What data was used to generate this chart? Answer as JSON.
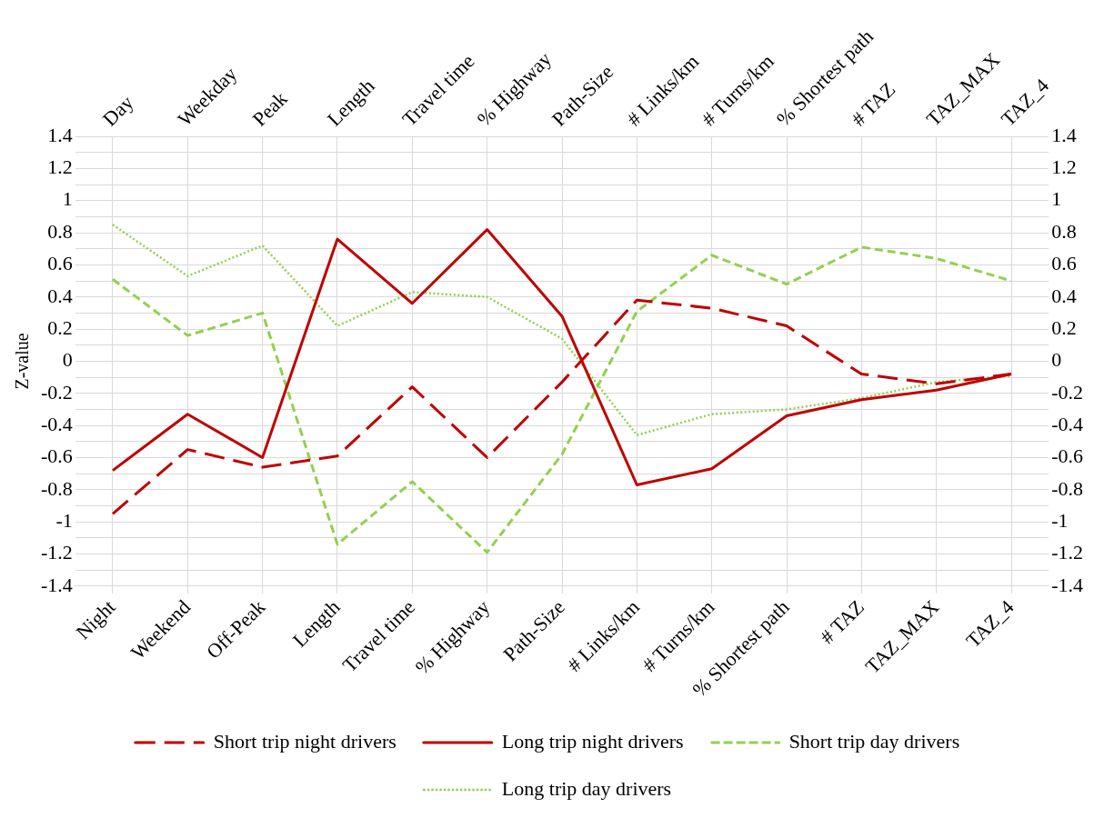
{
  "chart_data": {
    "type": "line",
    "ylabel": "Z-value",
    "categories": [
      "Night",
      "Weekend",
      "Off-Peak",
      "Length",
      "Travel time",
      "% Highway",
      "Path-Size",
      "# Links/km",
      "# Turns/km",
      "% Shortest path",
      "# TAZ",
      "TAZ_MAX",
      "TAZ_4"
    ],
    "annotations": [
      "Day",
      "Weekday",
      "Peak",
      "Length",
      "Travel time",
      "% Highway",
      "Path-Size",
      "# Links/km",
      "# Turns/km",
      "% Shortest path",
      "# TAZ",
      "TAZ_MAX",
      "TAZ_4"
    ],
    "ylim": [
      -1.4,
      1.4
    ],
    "yticks": [
      -1.4,
      {
        "value": -1.3,
        "label": null
      },
      -1.2,
      {
        "value": -1.1,
        "label": null
      },
      -1,
      {
        "value": -0.9,
        "label": null
      },
      -0.8,
      {
        "value": -0.7,
        "label": null
      },
      -0.6,
      {
        "value": -0.5,
        "label": null
      },
      -0.4,
      {
        "value": -0.3,
        "label": null
      },
      -0.2,
      {
        "value": -0.1,
        "label": null
      },
      0,
      {
        "value": 0.1,
        "label": null
      },
      0.2,
      {
        "value": 0.3,
        "label": null
      },
      0.4,
      {
        "value": 0.5,
        "label": null
      },
      0.6,
      {
        "value": 0.7,
        "label": null
      },
      0.8,
      {
        "value": 0.9,
        "label": null
      },
      1,
      {
        "value": 1.1,
        "label": null
      },
      1.2,
      {
        "value": 1.3,
        "label": null
      },
      1.4
    ],
    "y2lim": [
      -1.4,
      1.4
    ],
    "y2ticks": [
      -1.4,
      -1.2,
      -1,
      -0.8,
      -0.6,
      -0.4,
      -0.2,
      0,
      0.2,
      0.4,
      0.6,
      0.8,
      1,
      1.2,
      1.4
    ],
    "grid": true,
    "legend": "bottom",
    "marker": "none",
    "series": [
      {
        "name": "Short trip night drivers",
        "color": "#c00000",
        "line_style": "dashed",
        "values": [
          -0.95,
          -0.55,
          -0.66,
          -0.59,
          -0.16,
          -0.6,
          -0.13,
          0.38,
          0.33,
          0.22,
          -0.08,
          -0.14,
          -0.08
        ]
      },
      {
        "name": "Long trip night drivers",
        "color": "#c00000",
        "line_style": "solid",
        "values": [
          -0.68,
          -0.33,
          -0.6,
          0.76,
          0.36,
          0.82,
          0.28,
          -0.77,
          -0.67,
          -0.34,
          -0.24,
          -0.18,
          -0.08
        ]
      },
      {
        "name": "Short trip day drivers",
        "color": "#92d050",
        "line_style": "dashed",
        "values": [
          0.51,
          0.16,
          0.3,
          -1.14,
          -0.75,
          -1.19,
          -0.58,
          0.31,
          0.66,
          0.48,
          0.71,
          0.64,
          0.5
        ]
      },
      {
        "name": "Long trip day drivers",
        "color": "#92d050",
        "line_style": "dotted",
        "values": [
          0.85,
          0.53,
          0.72,
          0.22,
          0.43,
          0.4,
          0.14,
          -0.46,
          -0.33,
          -0.3,
          -0.23,
          -0.13,
          -0.09
        ]
      }
    ]
  }
}
